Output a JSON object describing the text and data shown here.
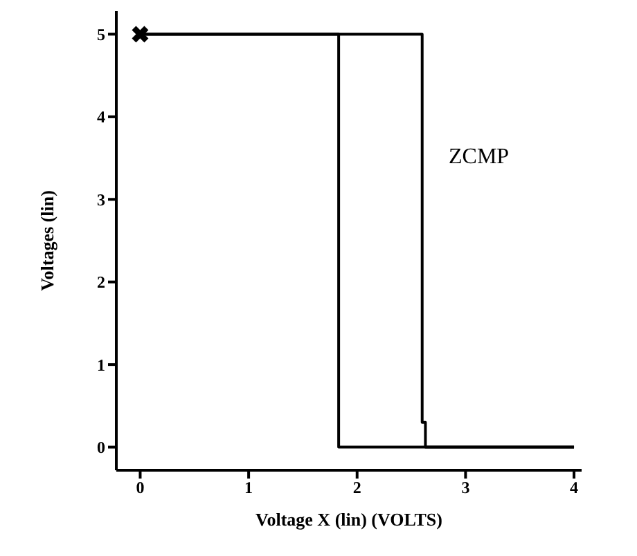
{
  "chart_data": {
    "type": "line",
    "xlabel": "Voltage X (lin) (VOLTS)",
    "ylabel": "Voltages (lin)",
    "xlim": [
      -0.22,
      4.07
    ],
    "ylim": [
      -0.28,
      5.28
    ],
    "xticks": [
      0,
      1,
      2,
      3,
      4
    ],
    "yticks": [
      0,
      1,
      2,
      3,
      4,
      5
    ],
    "grid": false,
    "legend": false,
    "series": [
      {
        "name": "ZCMP",
        "color": "#000000",
        "x": [
          0,
          2.6,
          2.6,
          2.63,
          2.63,
          4
        ],
        "values": [
          5,
          5,
          0.3,
          0.3,
          0,
          0
        ],
        "marker": "none"
      },
      {
        "color": "#000000",
        "x": [
          0,
          1.83,
          1.83,
          4
        ],
        "values": [
          5,
          5,
          0,
          0
        ],
        "marker": "none"
      },
      {
        "type": "scatter",
        "color": "#000000",
        "x": [
          0
        ],
        "values": [
          5
        ],
        "marker": "cross"
      }
    ]
  }
}
